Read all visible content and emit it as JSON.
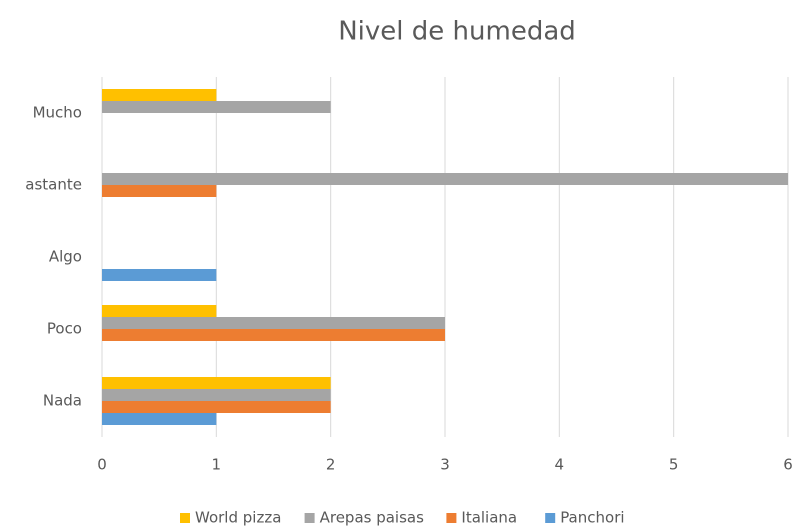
{
  "chart_data": {
    "type": "hbar",
    "title": "Nivel de humedad",
    "categories": [
      "Nada",
      "Poco",
      "Algo",
      "astante",
      "Mucho"
    ],
    "series": [
      {
        "name": "World pizza",
        "color": "#ffc000",
        "values": [
          2,
          1,
          0,
          0,
          1
        ]
      },
      {
        "name": "Arepas paisas",
        "color": "#a5a5a5",
        "values": [
          2,
          3,
          0,
          6,
          2
        ]
      },
      {
        "name": "Italiana",
        "color": "#ed7d31",
        "values": [
          2,
          3,
          0,
          1,
          0
        ]
      },
      {
        "name": "Panchori",
        "color": "#5b9bd5",
        "values": [
          1,
          0,
          1,
          0,
          0
        ]
      }
    ],
    "xlim": [
      0,
      6
    ],
    "xticks": [
      0,
      1,
      2,
      3,
      4,
      5,
      6
    ],
    "grid": true,
    "legend": "bottom"
  }
}
